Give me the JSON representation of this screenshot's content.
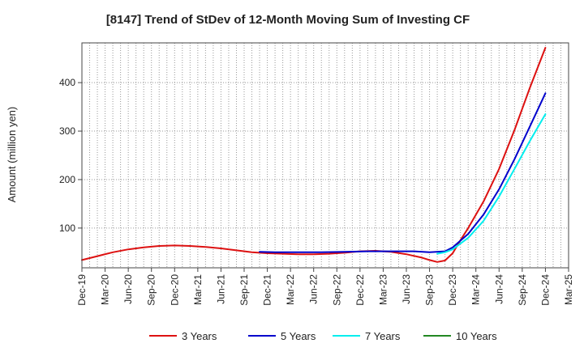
{
  "chart_data": {
    "type": "line",
    "title": "[8147]  Trend of StDev of 12-Month Moving Sum of Investing CF",
    "xlabel": "",
    "ylabel": "Amount (million yen)",
    "x_ticks": [
      "Dec-19",
      "Mar-20",
      "Jun-20",
      "Sep-20",
      "Dec-20",
      "Mar-21",
      "Jun-21",
      "Sep-21",
      "Dec-21",
      "Mar-22",
      "Jun-22",
      "Sep-22",
      "Dec-22",
      "Mar-23",
      "Jun-23",
      "Sep-23",
      "Dec-23",
      "Mar-24",
      "Jun-24",
      "Sep-24",
      "Dec-24",
      "Mar-25"
    ],
    "y_ticks": [
      100,
      200,
      300,
      400
    ],
    "ylim": [
      18,
      482
    ],
    "grid": true,
    "legend_position": "bottom",
    "series": [
      {
        "name": "3 Years",
        "color": "#dd1111",
        "points": [
          [
            "Dec-19",
            34
          ],
          [
            "Feb-20",
            42
          ],
          [
            "Apr-20",
            50
          ],
          [
            "Jun-20",
            56
          ],
          [
            "Aug-20",
            60
          ],
          [
            "Oct-20",
            63
          ],
          [
            "Dec-20",
            64
          ],
          [
            "Feb-21",
            63
          ],
          [
            "Apr-21",
            61
          ],
          [
            "Jun-21",
            58
          ],
          [
            "Aug-21",
            54
          ],
          [
            "Oct-21",
            50
          ],
          [
            "Dec-21",
            48
          ],
          [
            "Feb-22",
            47
          ],
          [
            "Apr-22",
            46
          ],
          [
            "Jun-22",
            46
          ],
          [
            "Aug-22",
            47
          ],
          [
            "Oct-22",
            49
          ],
          [
            "Dec-22",
            52
          ],
          [
            "Feb-23",
            53
          ],
          [
            "Apr-23",
            51
          ],
          [
            "Jun-23",
            46
          ],
          [
            "Aug-23",
            39
          ],
          [
            "Sep-23",
            34
          ],
          [
            "Oct-23",
            30
          ],
          [
            "Nov-23",
            33
          ],
          [
            "Dec-23",
            48
          ],
          [
            "Jan-24",
            75
          ],
          [
            "Feb-24",
            100
          ],
          [
            "Apr-24",
            155
          ],
          [
            "Jun-24",
            222
          ],
          [
            "Aug-24",
            302
          ],
          [
            "Oct-24",
            390
          ],
          [
            "Dec-24",
            472
          ]
        ]
      },
      {
        "name": "5 Years",
        "color": "#0000cc",
        "points": [
          [
            "Nov-21",
            51
          ],
          [
            "Jan-22",
            50
          ],
          [
            "Apr-22",
            50
          ],
          [
            "Jul-22",
            50
          ],
          [
            "Oct-22",
            51
          ],
          [
            "Jan-23",
            52
          ],
          [
            "Apr-23",
            52
          ],
          [
            "Jul-23",
            52
          ],
          [
            "Sep-23",
            50
          ],
          [
            "Nov-23",
            52
          ],
          [
            "Dec-23",
            60
          ],
          [
            "Feb-24",
            88
          ],
          [
            "Apr-24",
            128
          ],
          [
            "Jun-24",
            180
          ],
          [
            "Aug-24",
            242
          ],
          [
            "Oct-24",
            310
          ],
          [
            "Dec-24",
            378
          ]
        ]
      },
      {
        "name": "7 Years",
        "color": "#00eeee",
        "points": [
          [
            "Oct-23",
            47
          ],
          [
            "Nov-23",
            50
          ],
          [
            "Dec-23",
            56
          ],
          [
            "Feb-24",
            80
          ],
          [
            "Apr-24",
            115
          ],
          [
            "Jun-24",
            165
          ],
          [
            "Aug-24",
            222
          ],
          [
            "Oct-24",
            280
          ],
          [
            "Dec-24",
            335
          ]
        ]
      },
      {
        "name": "10 Years",
        "color": "#228822",
        "points": []
      }
    ]
  }
}
